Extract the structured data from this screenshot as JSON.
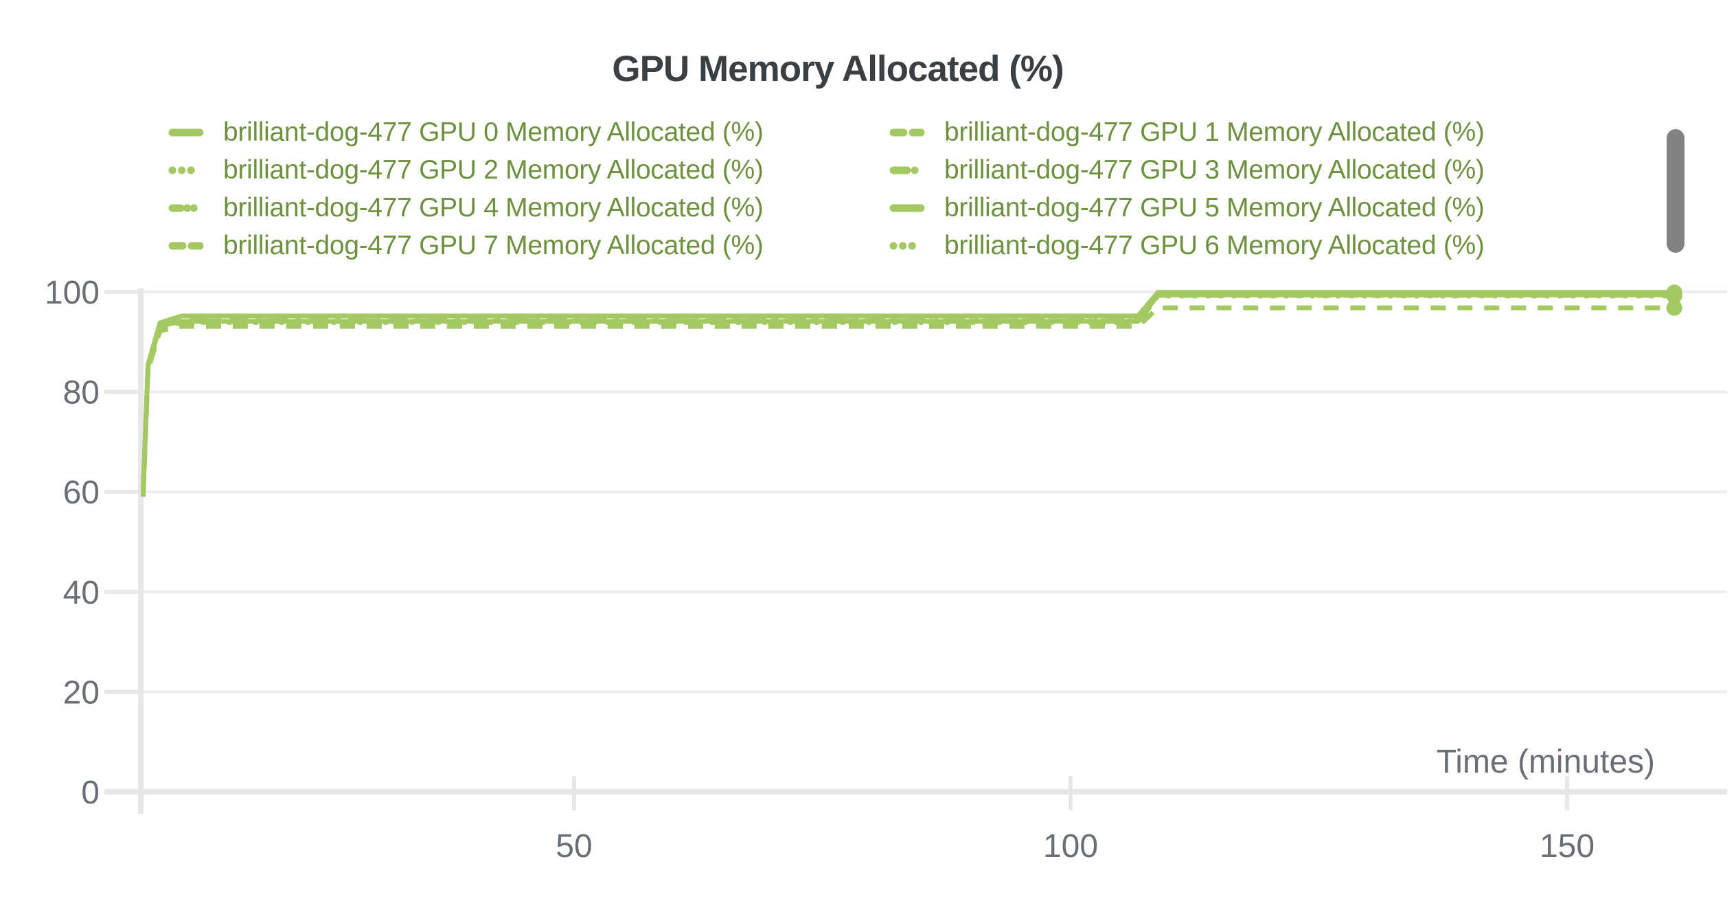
{
  "title": "GPU Memory Allocated (%)",
  "run_name": "brilliant-dog-477",
  "colors": {
    "line": "#a4c963",
    "legend_text": "#6e9140",
    "title_text": "#3a3f44",
    "tick_text": "#6a6e76",
    "grid": "#ededed",
    "axis": "#e7e7e7",
    "scrollbar": "#828282"
  },
  "chart_data": {
    "type": "line",
    "title": "GPU Memory Allocated (%)",
    "xlabel": "Time (minutes)",
    "ylabel": "",
    "grid": true,
    "legend_position": "top",
    "x_ticks": [
      50,
      100,
      150
    ],
    "y_ticks": [
      0,
      20,
      40,
      60,
      80,
      100
    ],
    "xlim": [
      6.5,
      166
    ],
    "ylim": [
      0,
      100
    ],
    "x": [
      6.6,
      7.1,
      8.3,
      10.5,
      106.8,
      108.8,
      160.8
    ],
    "series": [
      {
        "name": "brilliant-dog-477 GPU 0 Memory Allocated (%)",
        "line_style": "solid",
        "values": [
          60.0,
          85.5,
          93.8,
          95.2,
          95.2,
          99.9,
          99.9
        ]
      },
      {
        "name": "brilliant-dog-477 GPU 1 Memory Allocated (%)",
        "line_style": "dash",
        "values": [
          59.0,
          84.5,
          92.2,
          93.1,
          93.1,
          96.8,
          96.8
        ]
      },
      {
        "name": "brilliant-dog-477 GPU 2 Memory Allocated (%)",
        "line_style": "dot",
        "values": [
          60.0,
          85.2,
          93.1,
          94.0,
          94.0,
          99.3,
          99.3
        ]
      },
      {
        "name": "brilliant-dog-477 GPU 3 Memory Allocated (%)",
        "line_style": "dash-dot",
        "values": [
          60.0,
          85.4,
          93.3,
          94.3,
          94.3,
          99.5,
          99.5
        ]
      },
      {
        "name": "brilliant-dog-477 GPU 4 Memory Allocated (%)",
        "line_style": "dash-dot-dot",
        "values": [
          60.0,
          85.5,
          93.4,
          94.2,
          94.2,
          99.4,
          99.4
        ]
      },
      {
        "name": "brilliant-dog-477 GPU 5 Memory Allocated (%)",
        "line_style": "solid",
        "values": [
          60.0,
          85.3,
          93.2,
          94.1,
          94.1,
          99.4,
          99.4
        ]
      },
      {
        "name": "brilliant-dog-477 GPU 6 Memory Allocated (%)",
        "line_style": "dot",
        "values": [
          60.0,
          85.1,
          93.0,
          93.9,
          93.9,
          99.2,
          99.2
        ]
      },
      {
        "name": "brilliant-dog-477 GPU 7 Memory Allocated (%)",
        "line_style": "dash",
        "values": [
          59.5,
          84.8,
          92.7,
          93.7,
          93.7,
          99.3,
          99.3
        ]
      }
    ],
    "legend_order": [
      0,
      1,
      2,
      3,
      4,
      5,
      7,
      6
    ]
  }
}
